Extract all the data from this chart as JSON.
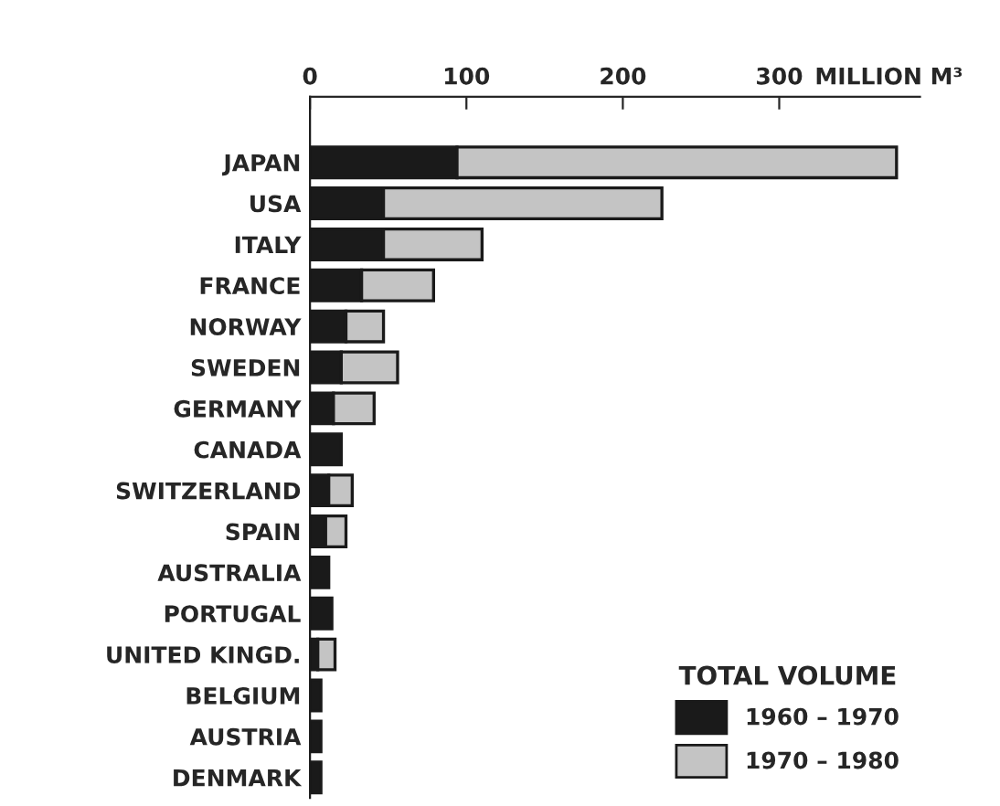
{
  "chart_data": {
    "type": "bar",
    "orientation": "horizontal",
    "stacked": true,
    "categories": [
      "JAPAN",
      "USA",
      "ITALY",
      "FRANCE",
      "NORWAY",
      "SWEDEN",
      "GERMANY",
      "CANADA",
      "SWITZERLAND",
      "SPAIN",
      "AUSTRALIA",
      "PORTUGAL",
      "UNITED KINGD.",
      "BELGIUM",
      "AUSTRIA",
      "DENMARK"
    ],
    "series": [
      {
        "name": "1960 – 1970",
        "color": "#1a1a1a",
        "values": [
          94,
          47,
          47,
          33,
          23,
          20,
          15,
          20,
          12,
          10,
          12,
          14,
          5,
          7,
          7,
          7
        ]
      },
      {
        "name": "1970 – 1980",
        "color": "#c4c4c4",
        "values": [
          281,
          178,
          63,
          46,
          24,
          36,
          26,
          null,
          15,
          13,
          null,
          null,
          11,
          null,
          null,
          null
        ]
      }
    ],
    "xlim": [
      0,
      390
    ],
    "xticks": [
      0,
      100,
      200,
      {
        "value": 300,
        "label": "300"
      }
    ],
    "xlabel": "MILLION M³",
    "legend_title": "TOTAL VOLUME",
    "legend": "bottom right",
    "grid": false
  }
}
